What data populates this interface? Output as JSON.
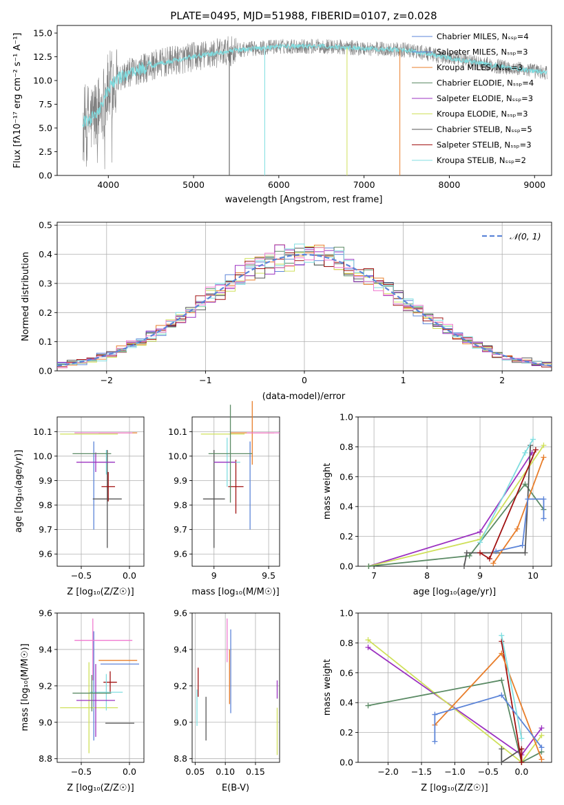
{
  "colors": {
    "blue": "#5b84d8",
    "orange": "#e87d2a",
    "green": "#5a8a64",
    "purple": "#9b30c0",
    "yellowgreen": "#cfe05a",
    "gray": "#555555",
    "red": "#a01010",
    "cyan": "#7fdde0",
    "pink": "#f07ad0",
    "grid": "#b0b0b0",
    "spectrum": "#808080"
  },
  "chart_data": [
    {
      "id": "spectrum",
      "type": "line",
      "title": "PLATE=0495, MJD=51988, FIBERID=0107, z=0.028",
      "xlabel": "wavelength [Angstrom, rest frame]",
      "ylabel": "Flux [fλ10⁻¹⁷ erg cm⁻² s⁻¹ A⁻¹]",
      "xlim": [
        3400,
        9200
      ],
      "ylim": [
        0,
        15.8
      ],
      "xticks": [
        4000,
        5000,
        6000,
        7000,
        8000,
        9000
      ],
      "yticks": [
        0.0,
        2.5,
        5.0,
        7.5,
        10.0,
        12.5,
        15.0
      ],
      "grid": false,
      "legend_position": "top-right",
      "legend": [
        "Chabrier MILES, Nₛₛₚ=4",
        "Salpeter MILES, Nₛₛₚ=3",
        "Kroupa MILES, Nₛₛₚ=3",
        "Chabrier ELODIE, Nₛₛₚ=4",
        "Salpeter ELODIE, Nₛₛₚ=3",
        "Kroupa ELODIE, Nₛₛₚ=3",
        "Chabrier STELIB, Nₛₛₚ=5",
        "Salpeter STELIB, Nₛₛₚ=3",
        "Kroupa STELIB, Nₛₛₚ=2"
      ],
      "data_range_x": [
        3700,
        9150
      ],
      "continuum": [
        [
          3700,
          5.5
        ],
        [
          3800,
          6.0
        ],
        [
          3900,
          7.0
        ],
        [
          4000,
          9.0
        ],
        [
          4100,
          10.2
        ],
        [
          4300,
          11.0
        ],
        [
          4600,
          11.8
        ],
        [
          5000,
          12.5
        ],
        [
          5500,
          13.2
        ],
        [
          6000,
          13.6
        ],
        [
          6500,
          13.6
        ],
        [
          7000,
          13.4
        ],
        [
          7500,
          13.2
        ],
        [
          8000,
          12.4
        ],
        [
          8500,
          11.6
        ],
        [
          9000,
          11.0
        ],
        [
          9150,
          10.8
        ]
      ],
      "model_dropouts": [
        [
          5420,
          "gray"
        ],
        [
          5835,
          "cyan"
        ],
        [
          6800,
          "yellowgreen"
        ],
        [
          7420,
          "orange"
        ]
      ]
    },
    {
      "id": "residuals",
      "type": "bar",
      "xlabel": "(data-model)/error",
      "ylabel": "Normed distribution",
      "xlim": [
        -2.5,
        2.5
      ],
      "ylim": [
        0,
        0.51
      ],
      "xticks": [
        -2,
        -1,
        0,
        1,
        2
      ],
      "xticklabels": [
        "−2",
        "−1",
        "0",
        "1",
        "2"
      ],
      "yticks": [
        0.0,
        0.1,
        0.2,
        0.3,
        0.4,
        0.5
      ],
      "grid": true,
      "legend_position": "top-right",
      "legend": [
        "𝒩(0, 1)"
      ],
      "histogram_bin_width": 0.1
    },
    {
      "id": "age-vs-Z",
      "type": "scatter",
      "xlabel": "Z [log₁₀(Z/Z☉)]",
      "ylabel": "age  [log₁₀(age/yr)]",
      "xlim": [
        -0.75,
        0.15
      ],
      "ylim": [
        9.55,
        10.16
      ],
      "xticks": [
        -0.5,
        0.0
      ],
      "xticklabels": [
        "−0.5",
        "0.0"
      ],
      "yticks": [
        9.6,
        9.7,
        9.8,
        9.9,
        10.0,
        10.1
      ],
      "grid": true,
      "series": [
        {
          "color": "blue",
          "x": -0.37,
          "xerr": 0.0,
          "y": 9.88,
          "yerr": 0.18
        },
        {
          "color": "orange",
          "x": -0.12,
          "xerr": 0.2,
          "y": 10.095,
          "yerr": 0.0
        },
        {
          "color": "pink",
          "x": -0.27,
          "xerr": 0.3,
          "y": 10.095,
          "yerr": 0.0
        },
        {
          "color": "yellowgreen",
          "x": -0.42,
          "xerr": 0.3,
          "y": 10.09,
          "yerr": 0.0
        },
        {
          "color": "gray",
          "x": -0.23,
          "xerr": 0.15,
          "y": 9.825,
          "yerr": 0.2
        },
        {
          "color": "red",
          "x": -0.22,
          "xerr": 0.07,
          "y": 9.875,
          "yerr": 0.06
        },
        {
          "color": "cyan",
          "x": -0.24,
          "xerr": 0.07,
          "y": 9.975,
          "yerr": 0.05
        },
        {
          "color": "purple",
          "x": -0.35,
          "xerr": 0.2,
          "y": 9.975,
          "yerr": 0.04
        },
        {
          "color": "green",
          "x": -0.39,
          "xerr": 0.2,
          "y": 10.01,
          "yerr": 0.0
        }
      ]
    },
    {
      "id": "age-vs-mass",
      "type": "scatter",
      "xlabel": "mass [log₁₀(M/M☉)]",
      "xlim": [
        8.8,
        9.6
      ],
      "ylim": [
        9.55,
        10.16
      ],
      "xticks": [
        9.0,
        9.5
      ],
      "yticks": [
        9.6,
        9.7,
        9.8,
        9.9,
        10.0,
        10.1
      ],
      "grid": true
    },
    {
      "id": "mass-weight-vs-age",
      "type": "line",
      "xlabel": "age  [log₁₀(age/yr)]",
      "ylabel": "mass weight",
      "xlim": [
        6.7,
        10.35
      ],
      "ylim": [
        0,
        1.0
      ],
      "xticks": [
        7,
        8,
        9,
        10
      ],
      "yticks": [
        0.0,
        0.2,
        0.4,
        0.6,
        0.8,
        1.0
      ],
      "grid": true,
      "series": [
        {
          "color": "purple",
          "points": [
            [
              6.9,
              0.0
            ],
            [
              9.0,
              0.23
            ],
            [
              9.98,
              0.76
            ]
          ]
        },
        {
          "color": "yellowgreen",
          "points": [
            [
              6.9,
              0.0
            ],
            [
              9.0,
              0.18
            ],
            [
              10.2,
              0.81
            ]
          ]
        },
        {
          "color": "green",
          "points": [
            [
              6.9,
              0.0
            ],
            [
              8.8,
              0.07
            ],
            [
              9.85,
              0.55
            ],
            [
              10.2,
              0.38
            ]
          ]
        },
        {
          "color": "gray",
          "points": [
            [
              8.7,
              0.0
            ],
            [
              8.75,
              0.09
            ],
            [
              9.85,
              0.09
            ],
            [
              9.95,
              0.81
            ]
          ]
        },
        {
          "color": "red",
          "points": [
            [
              9.0,
              0.09
            ],
            [
              9.18,
              0.05
            ],
            [
              10.05,
              0.78
            ]
          ]
        },
        {
          "color": "orange",
          "points": [
            [
              9.25,
              0.02
            ],
            [
              9.7,
              0.25
            ],
            [
              10.2,
              0.73
            ]
          ]
        },
        {
          "color": "blue",
          "points": [
            [
              9.3,
              0.1
            ],
            [
              9.8,
              0.14
            ],
            [
              9.9,
              0.45
            ],
            [
              10.2,
              0.45
            ],
            [
              10.2,
              0.32
            ]
          ]
        },
        {
          "color": "cyan",
          "points": [
            [
              9.0,
              0.16
            ],
            [
              9.85,
              0.76
            ],
            [
              10.0,
              0.85
            ]
          ]
        }
      ]
    },
    {
      "id": "mass-vs-Z",
      "type": "scatter",
      "xlabel": "Z [log₁₀(Z/Z☉)]",
      "ylabel": "mass [log₁₀(M/M☉)]",
      "xlim": [
        -0.75,
        0.15
      ],
      "ylim": [
        8.78,
        9.6
      ],
      "xticks": [
        -0.5,
        0.0
      ],
      "xticklabels": [
        "−0.5",
        "0.0"
      ],
      "yticks": [
        8.8,
        9.0,
        9.2,
        9.4,
        9.6
      ],
      "grid": true
    },
    {
      "id": "mass-vs-ebv",
      "type": "scatter",
      "xlabel": "E(B-V)",
      "xlim": [
        0.045,
        0.19
      ],
      "ylim": [
        8.78,
        9.6
      ],
      "xticks": [
        0.05,
        0.1,
        0.15
      ],
      "xticklabels": [
        "0.05",
        "0.10",
        "0.15"
      ],
      "yticks": [
        8.8,
        9.0,
        9.2,
        9.4,
        9.6
      ],
      "grid": true
    },
    {
      "id": "mass-weight-vs-Z",
      "type": "line",
      "xlabel": "Z [log₁₀(Z/Z☉)]",
      "ylabel": "mass weight",
      "xlim": [
        -2.45,
        0.45
      ],
      "ylim": [
        0,
        1.0
      ],
      "xticks": [
        -2.0,
        -1.5,
        -1.0,
        -0.5,
        0.0
      ],
      "xticklabels": [
        "−2.0",
        "−1.5",
        "−1.0",
        "−0.5",
        "0.0"
      ],
      "yticks": [
        0.0,
        0.2,
        0.4,
        0.6,
        0.8,
        1.0
      ],
      "grid": true,
      "series": [
        {
          "color": "purple",
          "points": [
            [
              -2.3,
              0.77
            ],
            [
              0.0,
              0.05
            ],
            [
              0.3,
              0.23
            ]
          ]
        },
        {
          "color": "yellowgreen",
          "points": [
            [
              -2.3,
              0.82
            ],
            [
              0.0,
              0.0
            ],
            [
              0.3,
              0.18
            ]
          ]
        },
        {
          "color": "green",
          "points": [
            [
              -2.3,
              0.38
            ],
            [
              -0.3,
              0.55
            ],
            [
              0.0,
              0.0
            ],
            [
              0.3,
              0.07
            ]
          ]
        },
        {
          "color": "gray",
          "points": [
            [
              -0.3,
              0.09
            ],
            [
              -0.3,
              0.0
            ],
            [
              0.0,
              0.09
            ],
            [
              0.0,
              0.0
            ]
          ]
        },
        {
          "color": "red",
          "points": [
            [
              -0.3,
              0.81
            ],
            [
              0.0,
              0.0
            ],
            [
              0.0,
              0.09
            ]
          ]
        },
        {
          "color": "orange",
          "points": [
            [
              -1.3,
              0.25
            ],
            [
              -0.3,
              0.73
            ],
            [
              0.3,
              0.02
            ]
          ]
        },
        {
          "color": "blue",
          "points": [
            [
              -1.3,
              0.14
            ],
            [
              -1.3,
              0.32
            ],
            [
              -0.3,
              0.45
            ],
            [
              0.3,
              0.1
            ]
          ]
        },
        {
          "color": "cyan",
          "points": [
            [
              -0.3,
              0.85
            ],
            [
              0.0,
              0.16
            ]
          ]
        }
      ]
    }
  ]
}
